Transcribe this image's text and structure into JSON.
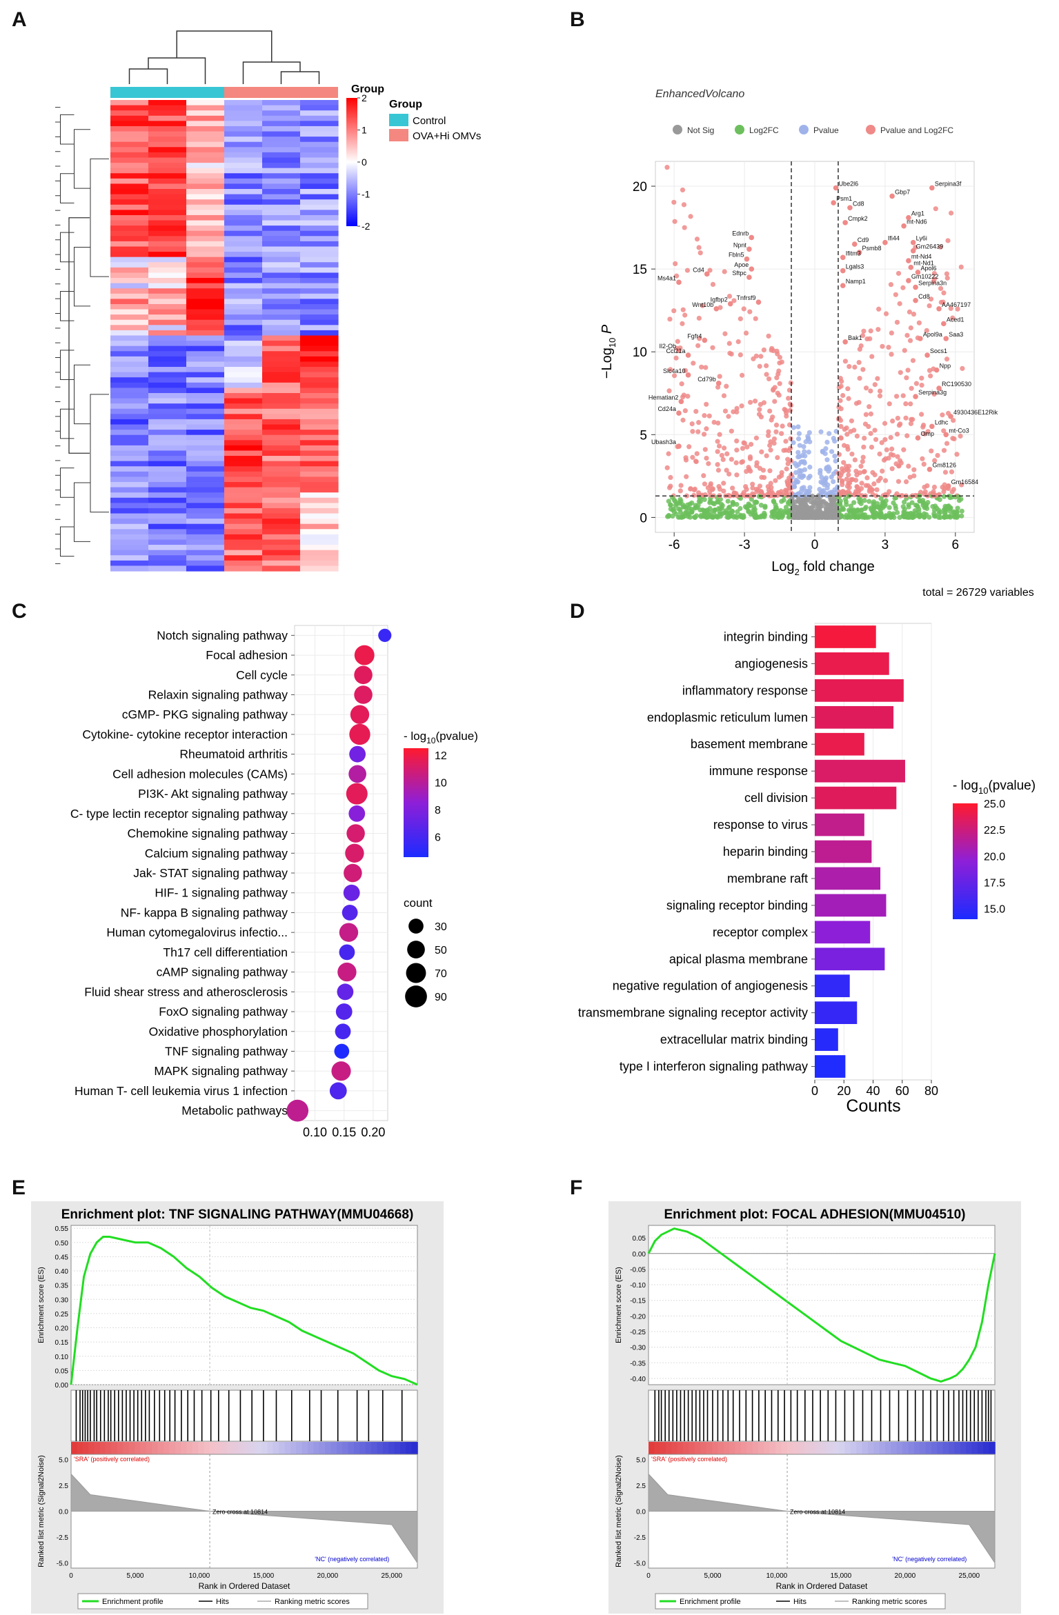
{
  "panels": {
    "a": "A",
    "b": "B",
    "c": "C",
    "d": "D",
    "e": "E",
    "f": "F"
  },
  "colors": {
    "control": "#38c6d4",
    "ova": "#f4877f",
    "heat_high": "#ff0000",
    "heat_low": "#0000ff",
    "gsea_line": "#22dd22"
  },
  "chart_data": [
    {
      "id": "heatmap",
      "type": "heatmap",
      "title": "",
      "legend_title": "Group",
      "groups": [
        "Control",
        "OVA+Hi OMVs"
      ],
      "scale_ticks": [
        "2",
        "1",
        "0",
        "-1",
        "-2"
      ],
      "scale_values": [
        2,
        1,
        0,
        -1,
        -2
      ],
      "columns": 6
    },
    {
      "id": "volcano",
      "type": "scatter",
      "title": "EnhancedVolcano",
      "legend": [
        "Not Sig",
        "Log2FC",
        "Pvalue",
        "Pvalue and Log2FC"
      ],
      "legend_colors": [
        "#999999",
        "#6cbf5c",
        "#9fb3ea",
        "#ef8a88"
      ],
      "xlabel": "Log",
      "xlabel_sub": "2",
      "xlabel_rest": " fold change",
      "ylabel_sub": "10",
      "x_ticks": [
        "-6",
        "-3",
        "0",
        "3",
        "6"
      ],
      "x_tick_values": [
        -6,
        -3,
        0,
        3,
        6
      ],
      "y_ticks": [
        "0",
        "5",
        "10",
        "15",
        "20"
      ],
      "y_tick_values": [
        0,
        5,
        10,
        15,
        20
      ],
      "xlim": [
        -6.8,
        6.8
      ],
      "ylim": [
        -0.9,
        21.5
      ],
      "fc_cutoff": 1,
      "p_cutoff": 1.3,
      "caption": "total = 26729 variables",
      "labeled_points": [
        {
          "label": "Serpina3f",
          "x": 5.0,
          "y": 19.9
        },
        {
          "label": "Ube2l6",
          "x": 0.9,
          "y": 19.9
        },
        {
          "label": "Gbp7",
          "x": 3.3,
          "y": 19.4
        },
        {
          "label": "Psm1",
          "x": 0.8,
          "y": 19.0
        },
        {
          "label": "Cd8",
          "x": 1.5,
          "y": 18.7
        },
        {
          "label": "Arg1",
          "x": 4.0,
          "y": 18.1
        },
        {
          "label": "Cmpk2",
          "x": 1.3,
          "y": 17.8
        },
        {
          "label": "mt-Nd6",
          "x": 3.8,
          "y": 17.6
        },
        {
          "label": "Ednrb",
          "x": -2.7,
          "y": 16.9
        },
        {
          "label": "Cd9",
          "x": 1.7,
          "y": 16.5
        },
        {
          "label": "Ifi44",
          "x": 3.0,
          "y": 16.6
        },
        {
          "label": "Ly6i",
          "x": 4.2,
          "y": 16.6
        },
        {
          "label": "Npnt",
          "x": -2.8,
          "y": 16.2
        },
        {
          "label": "Psmb8",
          "x": 1.9,
          "y": 16.0
        },
        {
          "label": "Gm26439",
          "x": 4.2,
          "y": 16.1
        },
        {
          "label": "Ifitm3",
          "x": 1.2,
          "y": 15.7
        },
        {
          "label": "mt-Nd4",
          "x": 4.0,
          "y": 15.5
        },
        {
          "label": "Fbln5",
          "x": -2.9,
          "y": 15.6
        },
        {
          "label": "mt-Nd1",
          "x": 4.1,
          "y": 15.1
        },
        {
          "label": "Apoe",
          "x": -2.7,
          "y": 15.0
        },
        {
          "label": "Apol6",
          "x": 4.4,
          "y": 14.8
        },
        {
          "label": "Lgals3",
          "x": 1.2,
          "y": 14.9
        },
        {
          "label": "Sftpc",
          "x": -2.8,
          "y": 14.5
        },
        {
          "label": "Cd4",
          "x": -4.6,
          "y": 14.7
        },
        {
          "label": "Gm10222",
          "x": 4.0,
          "y": 14.3
        },
        {
          "label": "Ms4a1",
          "x": -5.8,
          "y": 14.2
        },
        {
          "label": "Namp1",
          "x": 1.2,
          "y": 14.0
        },
        {
          "label": "Serpina3n",
          "x": 4.3,
          "y": 13.9
        },
        {
          "label": "Igfbp2",
          "x": -3.6,
          "y": 12.9
        },
        {
          "label": "Tnfrsf9",
          "x": -2.4,
          "y": 13.0
        },
        {
          "label": "Cd8",
          "x": 4.3,
          "y": 13.1
        },
        {
          "label": "Wnt10b",
          "x": -4.2,
          "y": 12.6
        },
        {
          "label": "Fgfr4",
          "x": -4.7,
          "y": 10.7
        },
        {
          "label": "Aced1",
          "x": 5.5,
          "y": 11.7
        },
        {
          "label": "AA467197",
          "x": 5.3,
          "y": 12.6
        },
        {
          "label": "Il2-Ob",
          "x": -5.8,
          "y": 10.1
        },
        {
          "label": "Ccl21a",
          "x": -5.4,
          "y": 9.8
        },
        {
          "label": "Apol9a",
          "x": 4.5,
          "y": 10.8
        },
        {
          "label": "Saa3",
          "x": 5.6,
          "y": 10.8
        },
        {
          "label": "Bak1",
          "x": 1.3,
          "y": 10.6
        },
        {
          "label": "Socs1",
          "x": 4.8,
          "y": 9.8
        },
        {
          "label": "Slc4a10",
          "x": -5.4,
          "y": 8.6
        },
        {
          "label": "Npp",
          "x": 5.2,
          "y": 8.9
        },
        {
          "label": "Cd79b",
          "x": -4.1,
          "y": 8.1
        },
        {
          "label": "RC190530",
          "x": 5.3,
          "y": 7.8
        },
        {
          "label": "Serpina3g",
          "x": 4.3,
          "y": 7.3
        },
        {
          "label": "Hematian2",
          "x": -5.7,
          "y": 7.0
        },
        {
          "label": "Cd24a",
          "x": -5.8,
          "y": 6.3
        },
        {
          "label": "4930436E12Rik",
          "x": 5.8,
          "y": 6.1
        },
        {
          "label": "Ldhc",
          "x": 5.0,
          "y": 5.5
        },
        {
          "label": "mt-Co3",
          "x": 5.6,
          "y": 5.0
        },
        {
          "label": "Omp",
          "x": 4.4,
          "y": 4.8
        },
        {
          "label": "Gm8126",
          "x": 4.9,
          "y": 2.9
        },
        {
          "label": "Gm16584",
          "x": 5.7,
          "y": 1.9
        },
        {
          "label": "Ubash3a",
          "x": -5.8,
          "y": 4.3
        }
      ]
    },
    {
      "id": "kegg_dot",
      "type": "scatter",
      "title": "",
      "color_legend_title": "- log",
      "color_legend_sub": "10",
      "color_legend_rest": "(pvalue)",
      "color_ticks": [
        "12",
        "10",
        "8",
        "6"
      ],
      "color_tick_values": [
        12,
        10,
        8,
        6
      ],
      "color_range": [
        4.5,
        12.5
      ],
      "size_legend_title": "count",
      "size_ticks": [
        "30",
        "50",
        "70",
        "90"
      ],
      "size_values": [
        30,
        50,
        70,
        90
      ],
      "x_ticks": [
        "0.10",
        "0.15",
        "0.20"
      ],
      "x_tick_values": [
        0.1,
        0.15,
        0.2
      ],
      "xlim": [
        0.065,
        0.225
      ],
      "categories": [
        "Notch signaling pathway",
        "Focal adhesion",
        "Cell cycle",
        "Relaxin signaling pathway",
        "cGMP- PKG signaling pathway",
        "Cytokine- cytokine receptor interaction",
        "Rheumatoid arthritis",
        "Cell adhesion molecules (CAMs)",
        "PI3K- Akt signaling pathway",
        "C- type lectin receptor signaling pathway",
        "Chemokine signaling pathway",
        "Calcium signaling pathway",
        "Jak- STAT signaling pathway",
        "HIF- 1 signaling pathway",
        "NF- kappa B signaling pathway",
        "Human cytomegalovirus infectio...",
        "Th17 cell differentiation",
        "cAMP signaling pathway",
        "Fluid shear stress and atherosclerosis",
        "FoxO signaling pathway",
        "Oxidative phosphorylation",
        "TNF signaling pathway",
        "MAPK signaling pathway",
        "Human T- cell leukemia virus 1 infection",
        "Metabolic pathways"
      ],
      "x": [
        0.22,
        0.185,
        0.183,
        0.183,
        0.177,
        0.177,
        0.173,
        0.173,
        0.172,
        0.172,
        0.17,
        0.168,
        0.165,
        0.163,
        0.16,
        0.158,
        0.155,
        0.155,
        0.152,
        0.15,
        0.148,
        0.146,
        0.145,
        0.14,
        0.07
      ],
      "counts": [
        20,
        70,
        55,
        55,
        60,
        80,
        40,
        50,
        85,
        40,
        55,
        60,
        55,
        40,
        35,
        60,
        35,
        60,
        40,
        40,
        35,
        30,
        65,
        45,
        90
      ],
      "pvalue": [
        5.5,
        11.8,
        11.4,
        11.3,
        11.5,
        11.6,
        7.5,
        9.8,
        11.5,
        8.3,
        11.0,
        11.1,
        10.8,
        7.2,
        6.5,
        10.4,
        6.0,
        10.5,
        7.0,
        6.5,
        6.0,
        4.6,
        10.5,
        6.3,
        10.2
      ]
    },
    {
      "id": "go_bar",
      "type": "bar",
      "title": "",
      "xlabel": "Counts",
      "x_ticks": [
        "0",
        "20",
        "40",
        "60",
        "80"
      ],
      "x_tick_values": [
        0,
        20,
        40,
        60,
        80
      ],
      "xlim": [
        0,
        80
      ],
      "color_legend_title": "- log",
      "color_legend_sub": "10",
      "color_legend_rest": "(pvalue)",
      "color_ticks": [
        "25.0",
        "22.5",
        "20.0",
        "17.5",
        "15.0"
      ],
      "color_tick_values": [
        25.0,
        22.5,
        20.0,
        17.5,
        15.0
      ],
      "color_range": [
        14.0,
        25.0
      ],
      "categories": [
        "integrin binding",
        "angiogenesis",
        "inflammatory response",
        "endoplasmic reticulum lumen",
        "basement membrane",
        "immune response",
        "cell division",
        "response to virus",
        "heparin binding",
        "membrane raft",
        "signaling receptor binding",
        "receptor complex",
        "apical plasma membrane",
        "negative regulation of angiogenesis",
        "transmembrane signaling receptor activity",
        "extracellular matrix binding",
        "type I interferon signaling pathway"
      ],
      "values": [
        42,
        51,
        61,
        54,
        34,
        62,
        56,
        34,
        39,
        45,
        49,
        38,
        48,
        24,
        29,
        16,
        21
      ],
      "pvalue": [
        24.5,
        24.0,
        23.8,
        23.5,
        24.0,
        23.2,
        23.5,
        22.0,
        21.8,
        21.0,
        20.5,
        19.5,
        18.5,
        15.0,
        15.2,
        14.5,
        14.2
      ]
    },
    {
      "id": "gsea_tnf",
      "type": "line",
      "title": "Enrichment plot: TNF SIGNALING PATHWAY(MMU04668)",
      "ylabel": "Enrichment score (ES)",
      "ylabel_metric": "Ranked list metric (Signal2Noise)",
      "xlabel": "Rank in Ordered Dataset",
      "y_ticks": [
        "0.55",
        "0.50",
        "0.45",
        "0.40",
        "0.35",
        "0.30",
        "0.25",
        "0.20",
        "0.15",
        "0.10",
        "0.05",
        "0.00"
      ],
      "y_tick_values": [
        0.55,
        0.5,
        0.45,
        0.4,
        0.35,
        0.3,
        0.25,
        0.2,
        0.15,
        0.1,
        0.05,
        0.0
      ],
      "ylim": [
        0.0,
        0.56
      ],
      "metric_ticks": [
        "5.0",
        "2.5",
        "0.0",
        "-2.5",
        "-5.0"
      ],
      "metric_tick_values": [
        5,
        2.5,
        0,
        -2.5,
        -5
      ],
      "x_ticks": [
        "0",
        "5,000",
        "10,000",
        "15,000",
        "20,000",
        "25,000"
      ],
      "x_tick_values": [
        0,
        5000,
        10000,
        15000,
        20000,
        25000
      ],
      "xlim": [
        0,
        27000
      ],
      "x": [
        0,
        500,
        1000,
        1500,
        2000,
        2500,
        3000,
        4000,
        5000,
        6000,
        7000,
        8000,
        9000,
        10000,
        11000,
        12000,
        13000,
        14000,
        15000,
        16000,
        17000,
        18000,
        19000,
        20000,
        21000,
        22000,
        23000,
        24000,
        25000,
        26000,
        27000
      ],
      "y": [
        0.0,
        0.2,
        0.38,
        0.46,
        0.5,
        0.52,
        0.52,
        0.51,
        0.5,
        0.5,
        0.48,
        0.45,
        0.41,
        0.38,
        0.34,
        0.31,
        0.29,
        0.27,
        0.26,
        0.24,
        0.22,
        0.19,
        0.17,
        0.15,
        0.13,
        0.11,
        0.08,
        0.05,
        0.03,
        0.02,
        0.0
      ],
      "hits": [
        400,
        700,
        900,
        1100,
        1300,
        1500,
        1800,
        2000,
        2300,
        2600,
        2900,
        3100,
        3400,
        3700,
        4000,
        4300,
        4600,
        4900,
        5200,
        5500,
        5800,
        6100,
        6500,
        6900,
        7300,
        7700,
        8100,
        8600,
        9100,
        9600,
        10200,
        10900,
        11500,
        12300,
        13200,
        14100,
        15000,
        16000,
        17200,
        18600,
        19500,
        20800,
        22300,
        23200,
        24300,
        25800
      ],
      "zero_cross_text": "Zero cross at 10814",
      "zero_cross": 10814,
      "pos_label": "'SRA' (positively correlated)",
      "neg_label": "'NC' (negatively correlated)",
      "legend": [
        "Enrichment profile",
        "Hits",
        "Ranking metric scores"
      ]
    },
    {
      "id": "gsea_focal",
      "type": "line",
      "title": "Enrichment plot: FOCAL ADHESION(MMU04510)",
      "ylabel": "Enrichment score (ES)",
      "ylabel_metric": "Ranked list metric (Signal2Noise)",
      "xlabel": "Rank in Ordered Dataset",
      "y_ticks": [
        "0.05",
        "0.00",
        "-0.05",
        "-0.10",
        "-0.15",
        "-0.20",
        "-0.25",
        "-0.30",
        "-0.35",
        "-0.40"
      ],
      "y_tick_values": [
        0.05,
        0.0,
        -0.05,
        -0.1,
        -0.15,
        -0.2,
        -0.25,
        -0.3,
        -0.35,
        -0.4
      ],
      "ylim": [
        -0.42,
        0.09
      ],
      "metric_ticks": [
        "5.0",
        "2.5",
        "0.0",
        "-2.5",
        "-5.0"
      ],
      "metric_tick_values": [
        5,
        2.5,
        0,
        -2.5,
        -5
      ],
      "x_ticks": [
        "0",
        "5,000",
        "10,000",
        "15,000",
        "20,000",
        "25,000"
      ],
      "x_tick_values": [
        0,
        5000,
        10000,
        15000,
        20000,
        25000
      ],
      "xlim": [
        0,
        27000
      ],
      "x": [
        0,
        500,
        1000,
        2000,
        3000,
        4000,
        5000,
        6000,
        7000,
        8000,
        9000,
        10000,
        11000,
        12000,
        13000,
        14000,
        15000,
        16000,
        17000,
        18000,
        19000,
        20000,
        21000,
        22000,
        22800,
        23500,
        24000,
        24500,
        25000,
        25500,
        26000,
        26500,
        27000
      ],
      "y": [
        0.0,
        0.04,
        0.06,
        0.08,
        0.07,
        0.05,
        0.02,
        -0.01,
        -0.04,
        -0.07,
        -0.1,
        -0.13,
        -0.16,
        -0.19,
        -0.22,
        -0.25,
        -0.28,
        -0.3,
        -0.32,
        -0.34,
        -0.35,
        -0.36,
        -0.38,
        -0.4,
        -0.41,
        -0.4,
        -0.39,
        -0.37,
        -0.34,
        -0.3,
        -0.22,
        -0.1,
        0.0
      ],
      "hits": [
        500,
        800,
        1000,
        1300,
        1600,
        1900,
        2200,
        2500,
        2800,
        3100,
        3400,
        3700,
        4000,
        4300,
        4600,
        5000,
        5400,
        5800,
        6200,
        6600,
        7100,
        7600,
        8100,
        8600,
        9100,
        9600,
        10100,
        10600,
        11100,
        11600,
        12200,
        12800,
        13400,
        14000,
        14600,
        15300,
        16000,
        16700,
        17400,
        18100,
        18800,
        19500,
        20200,
        20800,
        21400,
        22000,
        22500,
        23000,
        23400,
        23800,
        24200,
        24500,
        24800,
        25100,
        25400,
        25700,
        26000,
        26300,
        26500,
        26700
      ],
      "zero_cross_text": "Zero cross at 10814",
      "zero_cross": 10814,
      "pos_label": "'SRA' (positively correlated)",
      "neg_label": "'NC' (negatively correlated)",
      "legend": [
        "Enrichment profile",
        "Hits",
        "Ranking metric scores"
      ]
    }
  ]
}
